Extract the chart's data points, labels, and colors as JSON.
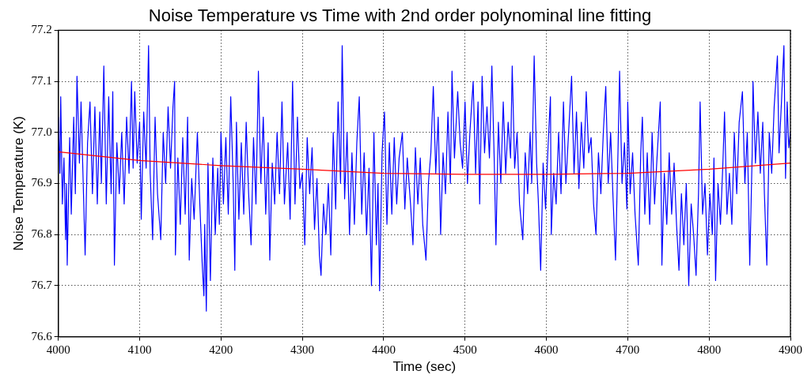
{
  "chart_data": {
    "type": "line",
    "title": "Noise Temperature vs Time with 2nd order polynominal line fitting",
    "xlabel": "Time (sec)",
    "ylabel": "Noise Temperature (K)",
    "xlim": [
      4000,
      4900
    ],
    "xticks": [
      4000,
      4100,
      4200,
      4300,
      4400,
      4500,
      4600,
      4700,
      4800,
      4900
    ],
    "ylim": [
      76.6,
      77.2
    ],
    "yticks": [
      {
        "value": 76.6,
        "label": "76.6"
      },
      {
        "value": 76.7,
        "label": "76.7"
      },
      {
        "value": 76.8,
        "label": "76.8"
      },
      {
        "value": 76.9,
        "label": "76.9"
      },
      {
        "value": 77.0,
        "label": "77.0"
      },
      {
        "value": 77.1,
        "label": "77.1"
      },
      {
        "value": 77.2,
        "label": "77.2"
      }
    ],
    "grid": true,
    "legend": false,
    "marker": "none",
    "line_style": "solid",
    "series": [
      {
        "color": "#0000ff",
        "x": [
          4000,
          4002,
          4003,
          4005,
          4007,
          4009,
          4010,
          4011,
          4014,
          4016,
          4019,
          4021,
          4023,
          4026,
          4028,
          4031,
          4033,
          4036,
          4039,
          4042,
          4045,
          4048,
          4051,
          4053,
          4056,
          4059,
          4062,
          4065,
          4067,
          4069,
          4072,
          4075,
          4078,
          4081,
          4084,
          4087,
          4090,
          4092,
          4094,
          4097,
          4100,
          4102,
          4105,
          4108,
          4111,
          4113,
          4116,
          4119,
          4122,
          4126,
          4129,
          4132,
          4135,
          4138,
          4141,
          4143,
          4144,
          4147,
          4150,
          4153,
          4156,
          4159,
          4161,
          4164,
          4167,
          4171,
          4174,
          4177,
          4179,
          4180,
          4182,
          4184,
          4187,
          4190,
          4193,
          4196,
          4198,
          4200,
          4203,
          4206,
          4209,
          4212,
          4215,
          4217,
          4219,
          4222,
          4225,
          4228,
          4231,
          4234,
          4237,
          4240,
          4243,
          4246,
          4249,
          4252,
          4255,
          4258,
          4260,
          4263,
          4266,
          4269,
          4272,
          4275,
          4278,
          4282,
          4285,
          4288,
          4291,
          4294,
          4297,
          4300,
          4303,
          4306,
          4309,
          4312,
          4315,
          4318,
          4321,
          4323,
          4326,
          4329,
          4332,
          4335,
          4338,
          4341,
          4344,
          4347,
          4349,
          4352,
          4355,
          4358,
          4361,
          4364,
          4367,
          4370,
          4373,
          4376,
          4379,
          4382,
          4385,
          4388,
          4391,
          4393,
          4395,
          4398,
          4401,
          4404,
          4407,
          4410,
          4413,
          4416,
          4419,
          4423,
          4426,
          4429,
          4433,
          4436,
          4439,
          4442,
          4445,
          4448,
          4452,
          4455,
          4458,
          4461,
          4464,
          4467,
          4470,
          4473,
          4476,
          4479,
          4482,
          4484,
          4487,
          4491,
          4494,
          4497,
          4500,
          4503,
          4506,
          4510,
          4513,
          4516,
          4518,
          4521,
          4524,
          4527,
          4530,
          4533,
          4536,
          4538,
          4541,
          4544,
          4547,
          4550,
          4553,
          4556,
          4558,
          4561,
          4564,
          4567,
          4571,
          4574,
          4577,
          4580,
          4582,
          4585,
          4588,
          4590,
          4593,
          4596,
          4599,
          4602,
          4605,
          4606,
          4609,
          4612,
          4615,
          4618,
          4621,
          4624,
          4628,
          4631,
          4634,
          4637,
          4640,
          4643,
          4646,
          4649,
          4652,
          4655,
          4658,
          4661,
          4664,
          4667,
          4670,
          4673,
          4676,
          4679,
          4682,
          4685,
          4688,
          4690,
          4693,
          4696,
          4699,
          4700,
          4703,
          4706,
          4709,
          4713,
          4716,
          4718,
          4721,
          4724,
          4727,
          4730,
          4733,
          4736,
          4740,
          4742,
          4745,
          4748,
          4751,
          4754,
          4757,
          4760,
          4763,
          4766,
          4769,
          4772,
          4775,
          4778,
          4781,
          4784,
          4787,
          4789,
          4792,
          4795,
          4798,
          4801,
          4804,
          4806,
          4808,
          4811,
          4814,
          4817,
          4819,
          4822,
          4825,
          4828,
          4831,
          4834,
          4837,
          4841,
          4844,
          4847,
          4850,
          4853,
          4854,
          4857,
          4860,
          4863,
          4866,
          4868,
          4871,
          4874,
          4877,
          4880,
          4884,
          4886,
          4889,
          4892,
          4894,
          4896,
          4898,
          4900
        ],
        "values": [
          77.03,
          76.92,
          77.07,
          76.86,
          76.95,
          76.79,
          76.9,
          76.74,
          76.99,
          76.84,
          77.03,
          76.88,
          77.11,
          76.94,
          77.06,
          76.88,
          76.76,
          76.98,
          77.06,
          76.88,
          77.05,
          76.86,
          77.04,
          76.9,
          77.13,
          76.86,
          77.07,
          76.88,
          77.08,
          76.74,
          76.98,
          76.88,
          77.0,
          76.86,
          77.03,
          76.92,
          77.1,
          76.93,
          77.08,
          76.94,
          77.02,
          76.83,
          77.04,
          76.93,
          77.17,
          76.92,
          76.79,
          77.03,
          76.88,
          76.79,
          77.0,
          76.9,
          77.05,
          76.93,
          77.05,
          77.1,
          76.76,
          76.95,
          76.82,
          76.99,
          76.84,
          77.03,
          76.75,
          76.91,
          76.83,
          77.0,
          76.86,
          76.74,
          76.68,
          76.82,
          76.65,
          76.94,
          76.71,
          76.95,
          76.8,
          76.93,
          76.82,
          77.0,
          76.86,
          76.99,
          76.84,
          77.07,
          76.9,
          76.73,
          77.02,
          76.83,
          76.98,
          76.84,
          77.02,
          76.88,
          76.78,
          76.99,
          76.86,
          77.12,
          76.9,
          77.03,
          76.84,
          76.98,
          76.75,
          76.94,
          76.86,
          77.0,
          76.88,
          77.06,
          76.86,
          76.98,
          76.83,
          77.1,
          76.86,
          77.03,
          76.89,
          76.92,
          76.78,
          76.99,
          76.88,
          76.97,
          76.81,
          76.91,
          76.76,
          76.72,
          76.86,
          76.8,
          76.9,
          76.76,
          77.0,
          76.85,
          77.06,
          76.9,
          77.17,
          76.87,
          77.0,
          76.8,
          76.96,
          76.82,
          76.98,
          77.07,
          76.84,
          76.96,
          76.8,
          76.93,
          76.7,
          77.0,
          76.78,
          76.9,
          76.69,
          76.96,
          77.04,
          76.82,
          76.98,
          76.84,
          76.99,
          76.86,
          76.95,
          77.0,
          76.85,
          76.95,
          76.86,
          76.78,
          76.97,
          76.86,
          76.95,
          76.82,
          76.75,
          76.9,
          76.96,
          77.09,
          76.92,
          77.03,
          76.8,
          76.96,
          76.88,
          77.04,
          76.9,
          77.12,
          76.95,
          77.08,
          76.98,
          76.93,
          77.06,
          76.9,
          77.0,
          77.1,
          76.92,
          77.06,
          76.86,
          77.11,
          76.96,
          77.05,
          76.95,
          77.13,
          76.94,
          76.78,
          77.02,
          76.9,
          77.06,
          76.92,
          77.02,
          76.95,
          77.13,
          76.93,
          77.0,
          76.86,
          76.79,
          76.96,
          76.88,
          77.0,
          76.9,
          77.15,
          76.94,
          76.87,
          76.73,
          76.94,
          76.85,
          76.97,
          77.07,
          76.8,
          76.92,
          76.86,
          77.0,
          76.88,
          77.06,
          76.9,
          77.02,
          77.11,
          76.92,
          77.04,
          76.89,
          77.02,
          76.93,
          77.08,
          76.96,
          76.99,
          76.86,
          76.8,
          76.96,
          76.88,
          77.0,
          77.09,
          76.9,
          77.0,
          76.87,
          76.75,
          76.96,
          77.12,
          76.9,
          76.98,
          76.85,
          77.06,
          76.88,
          76.96,
          76.84,
          76.74,
          76.96,
          77.03,
          76.84,
          76.96,
          76.82,
          77.0,
          76.86,
          76.95,
          77.06,
          76.74,
          76.92,
          76.82,
          76.96,
          76.84,
          76.94,
          76.82,
          76.73,
          76.88,
          76.78,
          76.9,
          76.7,
          76.86,
          76.8,
          76.72,
          76.88,
          77.06,
          76.84,
          76.9,
          76.76,
          76.88,
          76.8,
          76.95,
          76.71,
          76.9,
          76.82,
          76.94,
          77.04,
          76.84,
          76.92,
          76.82,
          77.0,
          76.88,
          77.02,
          77.08,
          76.9,
          77.0,
          76.74,
          76.96,
          77.1,
          76.94,
          77.04,
          76.92,
          77.02,
          76.88,
          76.74,
          77.0,
          76.92,
          77.05,
          77.15,
          76.96,
          77.06,
          77.17,
          76.91,
          77.06,
          76.97,
          77.0
        ]
      },
      {
        "type": "line",
        "color": "#ff0000",
        "x": [
          4000,
          4100,
          4200,
          4300,
          4400,
          4500,
          4600,
          4700,
          4800,
          4900
        ],
        "values": [
          76.962,
          76.945,
          76.935,
          76.928,
          76.92,
          76.918,
          76.918,
          76.92,
          76.928,
          76.94
        ]
      }
    ]
  }
}
